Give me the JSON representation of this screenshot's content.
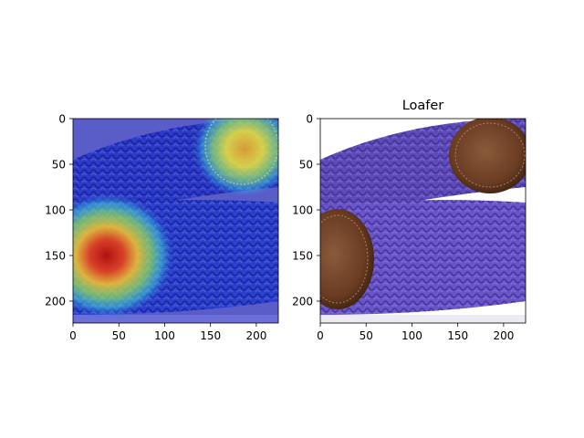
{
  "chart_data": [
    {
      "type": "image",
      "image_description": "Grad-CAM heatmap overlaid on a woven purple belt; strongest activation (red) on the left leather tab, secondary (yellow) on the top-right leather tab",
      "title": "",
      "xlim": [
        0,
        224
      ],
      "ylim": [
        224,
        0
      ],
      "xticks": [
        "0",
        "50",
        "100",
        "150",
        "200"
      ],
      "yticks": [
        "0",
        "50",
        "100",
        "150",
        "200"
      ],
      "xtick_values": [
        0,
        50,
        100,
        150,
        200
      ],
      "ytick_values": [
        0,
        50,
        100,
        150,
        200
      ],
      "heat_peaks": [
        {
          "x": 35,
          "y": 150,
          "level": "high"
        },
        {
          "x": 190,
          "y": 35,
          "level": "medium"
        }
      ]
    },
    {
      "type": "image",
      "image_description": "Original photo of a woven purple elastic belt with brown leather tabs",
      "title": "Loafer",
      "xlim": [
        0,
        224
      ],
      "ylim": [
        224,
        0
      ],
      "xticks": [
        "0",
        "50",
        "100",
        "150",
        "200"
      ],
      "yticks": [
        "0",
        "50",
        "100",
        "150",
        "200"
      ],
      "xtick_values": [
        0,
        50,
        100,
        150,
        200
      ],
      "ytick_values": [
        0,
        50,
        100,
        150,
        200
      ]
    }
  ],
  "colors": {
    "belt_purple": "#6a55c8",
    "belt_dark": "#3c2e8a",
    "leather": "#7a4a2c",
    "heat_red": "#c8201e",
    "heat_yellow": "#e8e030",
    "heat_cyan": "#40d0e0",
    "heat_blue": "#3050d8"
  }
}
